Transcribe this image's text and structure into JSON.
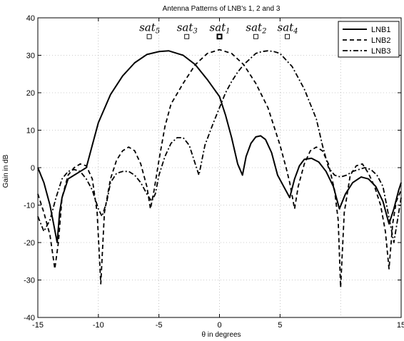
{
  "chart_data": {
    "type": "line",
    "title": "Antenna Patterns of LNB's 1, 2 and 3",
    "xlabel": "θ in degrees",
    "ylabel": "Gain in dB",
    "xlim": [
      -15,
      15
    ],
    "ylim": [
      -40,
      40
    ],
    "xticks": [
      -15,
      -10,
      -5,
      0,
      5,
      15
    ],
    "yticks": [
      -40,
      -30,
      -20,
      -10,
      0,
      10,
      20,
      30,
      40
    ],
    "grid": true,
    "legend_position": "top-right",
    "series": [
      {
        "name": "LNB1",
        "style": "solid",
        "x": [
          -15,
          -14.5,
          -14,
          -13.7,
          -13.4,
          -13.2,
          -13.0,
          -12.5,
          -12.0,
          -11.5,
          -11.0,
          -10.5,
          -10,
          -9,
          -8,
          -7,
          -6,
          -5,
          -4.2,
          -3,
          -2,
          -1,
          0,
          0.5,
          1.0,
          1.5,
          1.9,
          2.2,
          2.6,
          3.0,
          3.4,
          3.8,
          4.3,
          4.8,
          5.3,
          5.8,
          6.2,
          6.6,
          7.0,
          7.6,
          8.2,
          8.8,
          9.4,
          9.9,
          10.4,
          11.0,
          11.7,
          12.3,
          12.9,
          13.5,
          14.0,
          14.4,
          14.8,
          15
        ],
        "y": [
          0,
          -4,
          -10,
          -15,
          -20,
          -12,
          -8,
          -3,
          -2,
          -1,
          0,
          6,
          12,
          19.5,
          24.5,
          28,
          30.2,
          31,
          31.2,
          30,
          27.5,
          23.5,
          19,
          14,
          8,
          1,
          -2,
          3,
          6.5,
          8.2,
          8.5,
          7.5,
          4,
          -2,
          -5,
          -8,
          -3,
          0.5,
          2.2,
          2.5,
          1.5,
          -1,
          -5,
          -11,
          -7,
          -4,
          -2.5,
          -3,
          -5,
          -9,
          -15,
          -11,
          -6,
          -4
        ]
      },
      {
        "name": "LNB2",
        "style": "dashed",
        "x": [
          -15,
          -14.5,
          -14,
          -13.6,
          -13.3,
          -13.0,
          -12.5,
          -12.0,
          -11.5,
          -11.0,
          -10.5,
          -10.1,
          -9.8,
          -9.5,
          -9.0,
          -8.5,
          -8.0,
          -7.5,
          -7.0,
          -6.5,
          -6.0,
          -5.7,
          -5.4,
          -5.0,
          -4.5,
          -4.0,
          -3.0,
          -2.0,
          -1.0,
          0,
          1.0,
          2.0,
          3.0,
          4.0,
          4.5,
          5.0,
          5.5,
          5.8,
          6.2,
          6.5,
          7.0,
          7.5,
          8.0,
          8.5,
          9.0,
          9.5,
          9.8,
          10.0,
          10.3,
          10.8,
          11.3,
          11.8,
          12.3,
          12.8,
          13.3,
          13.7,
          14.0,
          14.3,
          14.6,
          15
        ],
        "y": [
          -7,
          -12,
          -18,
          -27,
          -20,
          -8,
          -2,
          0,
          1,
          0.5,
          -3,
          -12,
          -31,
          -12,
          -3,
          2,
          4.5,
          5.5,
          4.5,
          1,
          -5,
          -11,
          -6,
          2,
          11,
          17,
          22.5,
          27.5,
          30.5,
          31.5,
          30.5,
          27.5,
          22.5,
          16,
          11,
          6,
          0,
          -4,
          -11,
          -5,
          1,
          4.5,
          5.5,
          4.5,
          1,
          -6,
          -14,
          -32,
          -12,
          -2,
          0.5,
          1,
          -1.5,
          -5,
          -10,
          -17,
          -27,
          -15,
          -9,
          -6
        ]
      },
      {
        "name": "LNB3",
        "style": "dashdot",
        "x": [
          -15,
          -14.5,
          -14.0,
          -13.5,
          -13.0,
          -12.5,
          -12.0,
          -11.5,
          -11.0,
          -10.5,
          -10.0,
          -9.7,
          -9.3,
          -9.0,
          -8.5,
          -8.0,
          -7.5,
          -7.0,
          -6.5,
          -6.0,
          -5.6,
          -5.3,
          -5.0,
          -4.5,
          -4.0,
          -3.5,
          -3.0,
          -2.5,
          -2.0,
          -1.7,
          -1.2,
          -0.5,
          0,
          0.5,
          1.0,
          1.5,
          2.0,
          2.5,
          3.0,
          3.5,
          4.0,
          4.5,
          5.0,
          6.0,
          7.0,
          8.0,
          8.5,
          9.0,
          9.5,
          10.0,
          10.5,
          11.0,
          11.5,
          12.0,
          12.5,
          13.0,
          13.5,
          13.8,
          14.1,
          14.4,
          14.7,
          15
        ],
        "y": [
          -13,
          -17,
          -14,
          -8,
          -3,
          -1,
          -0.5,
          -1,
          -3,
          -6,
          -11,
          -13,
          -9,
          -4,
          -1.5,
          -1,
          -1,
          -2,
          -4,
          -7,
          -9,
          -7,
          -2,
          3,
          6.5,
          8,
          8,
          6,
          1,
          -2,
          6,
          12,
          16,
          20,
          23,
          25.5,
          27.5,
          29,
          30.5,
          31,
          31.2,
          31,
          30.5,
          27,
          21,
          13,
          6,
          0,
          -2,
          -2.5,
          -2,
          -1,
          -0.5,
          0,
          -0.5,
          -2,
          -5,
          -10,
          -15,
          -20,
          -14,
          -8
        ]
      }
    ],
    "annotations": [
      {
        "base": "sat",
        "sub": "5",
        "x": -5.8,
        "y": 35
      },
      {
        "base": "sat",
        "sub": "3",
        "x": -2.7,
        "y": 35
      },
      {
        "base": "sat",
        "sub": "1",
        "x": 0,
        "y": 35,
        "bold": true
      },
      {
        "base": "sat",
        "sub": "2",
        "x": 3.0,
        "y": 35
      },
      {
        "base": "sat",
        "sub": "4",
        "x": 5.6,
        "y": 35
      }
    ]
  }
}
